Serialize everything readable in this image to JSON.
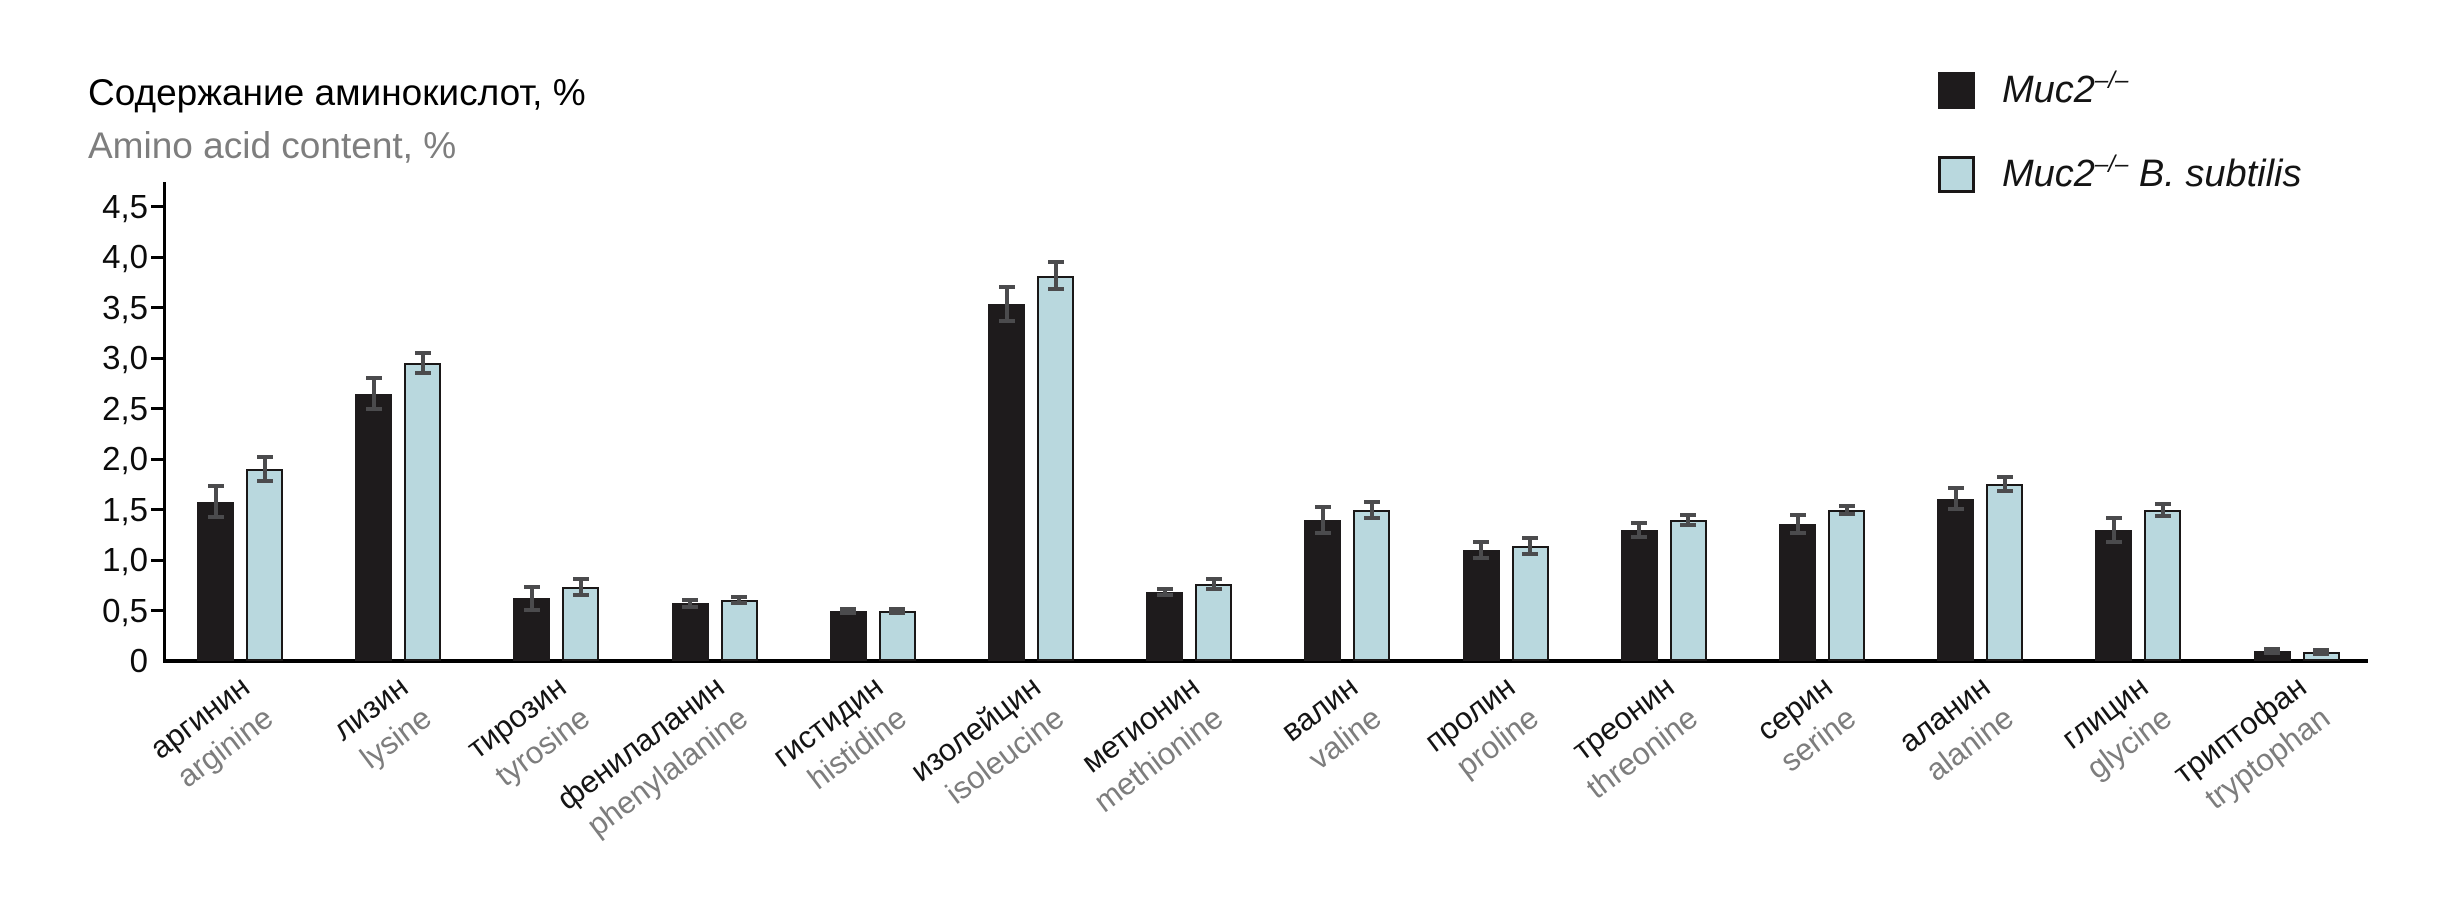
{
  "chart_data": {
    "type": "bar",
    "title_ru": "Содержание аминокислот, %",
    "title_en": "Amino acid content, %",
    "xlabel": "",
    "ylabel": "",
    "ylim": [
      0,
      4.5
    ],
    "ytick_values": [
      0,
      0.5,
      1.0,
      1.5,
      2.0,
      2.5,
      3.0,
      3.5,
      4.0,
      4.5
    ],
    "ytick_labels": [
      "0",
      "0,5",
      "1,0",
      "1,5",
      "2,0",
      "2,5",
      "3,0",
      "3,5",
      "4,0",
      "4,5"
    ],
    "grid": false,
    "legend_position": "top-right",
    "categories_ru": [
      "аргинин",
      "лизин",
      "тирозин",
      "фенилаланин",
      "гистидин",
      "изолейцин",
      "метионин",
      "валин",
      "пролин",
      "треонин",
      "серин",
      "аланин",
      "глицин",
      "триптофан"
    ],
    "categories_en": [
      "arginine",
      "lysine",
      "tyrosine",
      "phenylalanine",
      "histidine",
      "isoleucine",
      "methionine",
      "valine",
      "proline",
      "threonine",
      "serine",
      "alanine",
      "glycine",
      "tryptophan"
    ],
    "series": [
      {
        "name": "Muc2–/–",
        "color": "#1e1b1c",
        "values": [
          1.58,
          2.65,
          0.62,
          0.57,
          0.5,
          3.54,
          0.68,
          1.4,
          1.1,
          1.3,
          1.36,
          1.61,
          1.3,
          0.1
        ],
        "errors": [
          0.15,
          0.15,
          0.11,
          0.03,
          0.02,
          0.17,
          0.03,
          0.13,
          0.08,
          0.07,
          0.09,
          0.1,
          0.12,
          0.02
        ]
      },
      {
        "name": "Muc2–/– B. subtilis",
        "color": "#b9d8de",
        "values": [
          1.9,
          2.95,
          0.73,
          0.6,
          0.5,
          3.82,
          0.76,
          1.5,
          1.14,
          1.4,
          1.5,
          1.75,
          1.5,
          0.09
        ],
        "errors": [
          0.12,
          0.1,
          0.08,
          0.03,
          0.02,
          0.13,
          0.05,
          0.08,
          0.08,
          0.05,
          0.04,
          0.07,
          0.06,
          0.02
        ]
      }
    ],
    "error_bar_color": "#4b4b4d",
    "axis_color": "#000000",
    "label_ru_color": "#141414",
    "label_en_color": "#7d7d7d"
  },
  "legend": [
    {
      "pre": "Muc2",
      "sup": "–/–",
      "post": ""
    },
    {
      "pre": "Muc2",
      "sup": "–/–",
      "post": " B. subtilis"
    }
  ]
}
